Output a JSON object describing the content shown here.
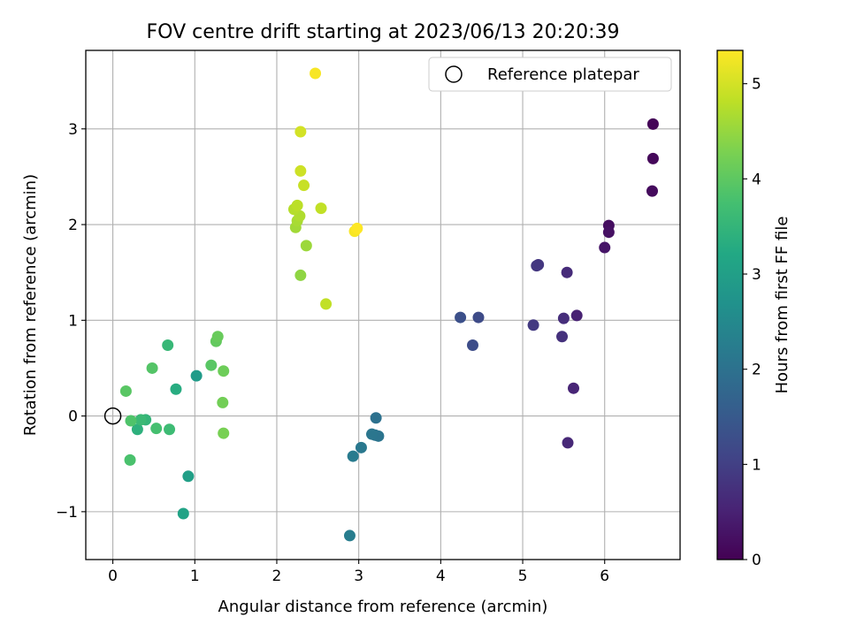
{
  "chart_data": {
    "type": "scatter",
    "title": "FOV centre drift starting at 2023/06/13 20:20:39",
    "xlabel": "Angular distance from reference (arcmin)",
    "ylabel": "Rotation from reference (arcmin)",
    "xlim": [
      -0.33,
      6.92
    ],
    "ylim": [
      -1.5,
      3.82
    ],
    "xticks": [
      0,
      1,
      2,
      3,
      4,
      5,
      6
    ],
    "xtick_labels": [
      "0",
      "1",
      "2",
      "3",
      "4",
      "5",
      "6"
    ],
    "yticks": [
      -1,
      0,
      1,
      2,
      3
    ],
    "ytick_labels": [
      "−1",
      "0",
      "1",
      "2",
      "3"
    ],
    "grid": true,
    "legend": {
      "placement": "top-right",
      "label": "Reference platepar"
    },
    "reference_point": {
      "x": 0,
      "y": 0
    },
    "colorbar": {
      "label": "Hours from first FF file",
      "colormap": "viridis",
      "range": [
        0,
        5.35
      ],
      "ticks": [
        0,
        1,
        2,
        3,
        4,
        5
      ],
      "tick_labels": [
        "0",
        "1",
        "2",
        "3",
        "4",
        "5"
      ]
    },
    "points": [
      {
        "x": 6.59,
        "y": 3.05,
        "hours": 0.05
      },
      {
        "x": 6.59,
        "y": 2.69,
        "hours": 0.1
      },
      {
        "x": 6.58,
        "y": 2.35,
        "hours": 0.15
      },
      {
        "x": 6.05,
        "y": 1.99,
        "hours": 0.2
      },
      {
        "x": 6.05,
        "y": 1.92,
        "hours": 0.25
      },
      {
        "x": 6.0,
        "y": 1.76,
        "hours": 0.3
      },
      {
        "x": 5.66,
        "y": 1.05,
        "hours": 0.5
      },
      {
        "x": 5.62,
        "y": 0.29,
        "hours": 0.55
      },
      {
        "x": 5.55,
        "y": -0.28,
        "hours": 0.6
      },
      {
        "x": 5.54,
        "y": 1.5,
        "hours": 0.65
      },
      {
        "x": 5.5,
        "y": 1.02,
        "hours": 0.7
      },
      {
        "x": 5.48,
        "y": 0.83,
        "hours": 0.75
      },
      {
        "x": 5.19,
        "y": 1.58,
        "hours": 0.85
      },
      {
        "x": 5.17,
        "y": 1.57,
        "hours": 0.85
      },
      {
        "x": 5.13,
        "y": 0.95,
        "hours": 0.9
      },
      {
        "x": 4.46,
        "y": 1.03,
        "hours": 1.2
      },
      {
        "x": 4.39,
        "y": 0.74,
        "hours": 1.25
      },
      {
        "x": 4.24,
        "y": 1.03,
        "hours": 1.3
      },
      {
        "x": 3.21,
        "y": -0.02,
        "hours": 2.0
      },
      {
        "x": 3.24,
        "y": -0.21,
        "hours": 2.05
      },
      {
        "x": 3.2,
        "y": -0.2,
        "hours": 2.05
      },
      {
        "x": 3.16,
        "y": -0.19,
        "hours": 2.1
      },
      {
        "x": 3.03,
        "y": -0.33,
        "hours": 2.15
      },
      {
        "x": 2.93,
        "y": -0.42,
        "hours": 2.2
      },
      {
        "x": 2.89,
        "y": -1.25,
        "hours": 2.25
      },
      {
        "x": 1.02,
        "y": 0.42,
        "hours": 2.9
      },
      {
        "x": 0.92,
        "y": -0.63,
        "hours": 3.0
      },
      {
        "x": 0.86,
        "y": -1.02,
        "hours": 3.1
      },
      {
        "x": 0.77,
        "y": 0.28,
        "hours": 3.3
      },
      {
        "x": 0.67,
        "y": 0.74,
        "hours": 3.55
      },
      {
        "x": 0.69,
        "y": -0.14,
        "hours": 3.65
      },
      {
        "x": 0.3,
        "y": -0.14,
        "hours": 3.4
      },
      {
        "x": 0.4,
        "y": -0.04,
        "hours": 3.5
      },
      {
        "x": 0.34,
        "y": -0.04,
        "hours": 3.6
      },
      {
        "x": 0.53,
        "y": -0.13,
        "hours": 3.75
      },
      {
        "x": 0.48,
        "y": 0.5,
        "hours": 3.9
      },
      {
        "x": 0.22,
        "y": -0.05,
        "hours": 3.85
      },
      {
        "x": 0.21,
        "y": -0.46,
        "hours": 3.8
      },
      {
        "x": 0.16,
        "y": 0.26,
        "hours": 3.95
      },
      {
        "x": 1.2,
        "y": 0.53,
        "hours": 3.95
      },
      {
        "x": 1.26,
        "y": 0.78,
        "hours": 4.05
      },
      {
        "x": 1.28,
        "y": 0.83,
        "hours": 4.1
      },
      {
        "x": 1.35,
        "y": 0.47,
        "hours": 4.15
      },
      {
        "x": 1.34,
        "y": 0.14,
        "hours": 4.2
      },
      {
        "x": 1.35,
        "y": -0.18,
        "hours": 4.25
      },
      {
        "x": 2.29,
        "y": 1.47,
        "hours": 4.45
      },
      {
        "x": 2.36,
        "y": 1.78,
        "hours": 4.55
      },
      {
        "x": 2.23,
        "y": 1.97,
        "hours": 4.6
      },
      {
        "x": 2.25,
        "y": 2.04,
        "hours": 4.65
      },
      {
        "x": 2.28,
        "y": 2.09,
        "hours": 4.7
      },
      {
        "x": 2.21,
        "y": 2.16,
        "hours": 4.75
      },
      {
        "x": 2.25,
        "y": 2.2,
        "hours": 4.8
      },
      {
        "x": 2.54,
        "y": 2.17,
        "hours": 4.85
      },
      {
        "x": 2.6,
        "y": 1.17,
        "hours": 4.85
      },
      {
        "x": 2.33,
        "y": 2.41,
        "hours": 4.9
      },
      {
        "x": 2.29,
        "y": 2.56,
        "hours": 4.95
      },
      {
        "x": 2.29,
        "y": 2.97,
        "hours": 5.0
      },
      {
        "x": 2.95,
        "y": 1.93,
        "hours": 5.3
      },
      {
        "x": 2.98,
        "y": 1.96,
        "hours": 5.35
      },
      {
        "x": 2.47,
        "y": 3.58,
        "hours": 5.3
      }
    ]
  }
}
